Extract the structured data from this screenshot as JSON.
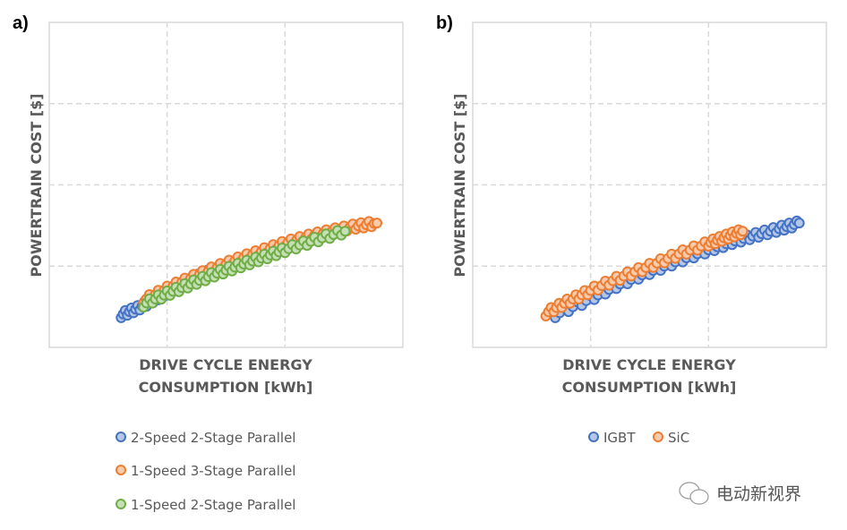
{
  "chart_data": [
    {
      "type": "scatter",
      "panel_label": "a)",
      "title": "",
      "xlabel_lines": [
        "DRIVE CYCLE ENERGY",
        "CONSUMPTION [kWh]"
      ],
      "ylabel": "POWERTRAIN COST [$]",
      "xlim": [
        0,
        3
      ],
      "ylim": [
        0,
        4
      ],
      "grid": true,
      "tick_labels_shown": false,
      "legend_placement": "bottom",
      "series": [
        {
          "name": "2-Speed 2-Stage Parallel",
          "stroke": "#4472C4",
          "fill": "#B4C7E7",
          "points": [
            [
              0.61,
              0.4
            ],
            [
              0.75,
              0.48
            ],
            [
              0.9,
              0.6
            ],
            [
              1.0,
              0.68
            ],
            [
              1.1,
              0.76
            ],
            [
              1.25,
              0.86
            ],
            [
              1.35,
              0.92
            ]
          ]
        },
        {
          "name": "1-Speed 3-Stage Parallel",
          "stroke": "#ED7D31",
          "fill": "#F8CBAD",
          "points": [
            [
              0.8,
              0.58
            ],
            [
              1.0,
              0.72
            ],
            [
              1.2,
              0.85
            ],
            [
              1.4,
              0.97
            ],
            [
              1.6,
              1.08
            ],
            [
              1.8,
              1.18
            ],
            [
              2.0,
              1.28
            ],
            [
              2.2,
              1.36
            ],
            [
              2.4,
              1.43
            ],
            [
              2.6,
              1.49
            ],
            [
              2.78,
              1.53
            ]
          ]
        },
        {
          "name": "1-Speed 2-Stage Parallel",
          "stroke": "#70AD47",
          "fill": "#C5E0B4",
          "points": [
            [
              0.8,
              0.53
            ],
            [
              1.0,
              0.66
            ],
            [
              1.2,
              0.78
            ],
            [
              1.4,
              0.9
            ],
            [
              1.6,
              1.0
            ],
            [
              1.8,
              1.1
            ],
            [
              2.0,
              1.2
            ],
            [
              2.25,
              1.32
            ],
            [
              2.51,
              1.43
            ]
          ]
        }
      ]
    },
    {
      "type": "scatter",
      "panel_label": "b)",
      "title": "",
      "xlabel_lines": [
        "DRIVE CYCLE ENERGY",
        "CONSUMPTION [kWh]"
      ],
      "ylabel": "POWERTRAIN COST [$]",
      "xlim": [
        0,
        3
      ],
      "ylim": [
        0,
        4
      ],
      "grid": true,
      "tick_labels_shown": false,
      "legend_placement": "bottom",
      "series": [
        {
          "name": "IGBT",
          "stroke": "#4472C4",
          "fill": "#B4C7E7",
          "points": [
            [
              0.7,
              0.4
            ],
            [
              1.0,
              0.6
            ],
            [
              1.25,
              0.78
            ],
            [
              1.5,
              0.93
            ],
            [
              1.75,
              1.07
            ],
            [
              2.0,
              1.2
            ],
            [
              2.2,
              1.3
            ],
            [
              2.4,
              1.38
            ],
            [
              2.6,
              1.46
            ],
            [
              2.77,
              1.53
            ]
          ]
        },
        {
          "name": "SiC",
          "stroke": "#ED7D31",
          "fill": "#F8CBAD",
          "points": [
            [
              0.62,
              0.42
            ],
            [
              0.8,
              0.56
            ],
            [
              1.0,
              0.7
            ],
            [
              1.25,
              0.86
            ],
            [
              1.5,
              1.0
            ],
            [
              1.75,
              1.15
            ],
            [
              2.0,
              1.28
            ],
            [
              2.15,
              1.36
            ],
            [
              2.29,
              1.43
            ]
          ]
        }
      ]
    }
  ],
  "watermark": {
    "text": "电动新视界",
    "icon": "wechat-icon"
  }
}
